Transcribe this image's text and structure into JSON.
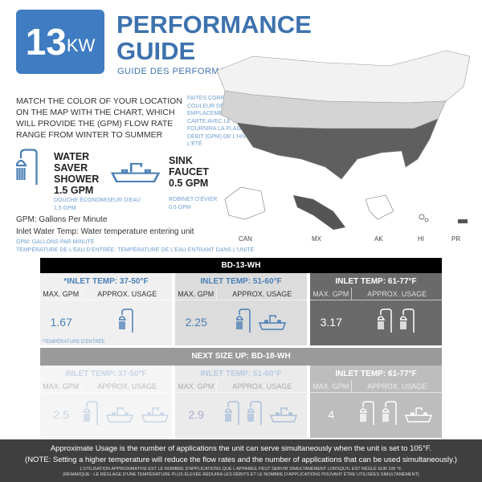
{
  "logo": {
    "number": "13",
    "unit": "KW"
  },
  "title": {
    "line1": "PERFORMANCE",
    "line2": "GUIDE",
    "subtitle": "GUIDE DES PERFORMANCES"
  },
  "intro": {
    "en": "MATCH THE COLOR OF YOUR LOCATION ON THE MAP WITH THE CHART, WHICH WILL PROVIDE THE  (GPM) FLOW RATE RANGE FROM WINTER TO SUMMER",
    "fr": "FAITES CORRESPONDRE LA COULEUR DE VOTRE EMPLACEMENT SUR LA CARTE AVEC LE TABLEAU, QUI FOURNIRA LA PLAGE DE DÉBIT (GPM) DE L'HIVER À L'ÉTÉ"
  },
  "shower": {
    "l1": "WATER",
    "l2": "SAVER",
    "l3": "SHOWER",
    "l4": "1.5 GPM",
    "fr1": "DOUCHE ÉCONOMISEUR D'EAU",
    "fr2": "1.5 GPM"
  },
  "sink": {
    "l1": "SINK",
    "l2": "FAUCET",
    "l3": "0.5 GPM",
    "fr1": "ROBINET D'ÉVIER",
    "fr2": "0.5 GPM"
  },
  "legend": {
    "gpm": "GPM: Gallons Per Minute",
    "inlet": "Inlet Water Temp: Water temperature entering unit",
    "fr1": "GPM: GALLONS PAR MINUTE",
    "fr2": "TEMPÉRATURE DE L'EAU D'ENTRÉE: TEMPÉRATURE DE L'EAU ENTRANT DANS L'UNITÉ"
  },
  "map_labels": [
    "CAN",
    "MX",
    "AK",
    "HI",
    "PR"
  ],
  "colors": {
    "blue": "#3f7cc1",
    "cold": "#f0f0f0",
    "mild": "#dcdcdc",
    "warm": "#6a6a6a"
  },
  "table1": {
    "title": "BD-13-WH",
    "note": "*TEMPÉRATURE D'ENTRÉE",
    "cols": [
      {
        "temp": "*INLET TEMP: 37-50°F",
        "h1": "MAX. GPM",
        "h2": "APPROX. USAGE",
        "gpm": "1.67",
        "icons": [
          "shower"
        ]
      },
      {
        "temp": "INLET TEMP: 51-60°F",
        "h1": "MAX. GPM",
        "h2": "APPROX. USAGE",
        "gpm": "2.25",
        "icons": [
          "shower",
          "sink"
        ]
      },
      {
        "temp": "INLET TEMP: 61-77°F",
        "h1": "MAX. GPM",
        "h2": "APPROX. USAGE",
        "gpm": "3.17",
        "icons": [
          "shower",
          "shower"
        ]
      }
    ]
  },
  "table2": {
    "title": "NEXT SIZE UP: BD-18-WH",
    "cols": [
      {
        "temp": "INLET TEMP: 37-50°F",
        "h1": "MAX. GPM",
        "h2": "APPROX. USAGE",
        "gpm": "2.5",
        "icons": [
          "shower",
          "sink",
          "sink"
        ]
      },
      {
        "temp": "INLET TEMP: 51-60°F",
        "h1": "MAX. GPM",
        "h2": "APPROX. USAGE",
        "gpm": "2.9",
        "icons": [
          "shower",
          "shower",
          "sink"
        ]
      },
      {
        "temp": "INLET TEMP: 61-77°F",
        "h1": "MAX. GPM",
        "h2": "APPROX. USAGE",
        "gpm": "4",
        "icons": [
          "shower",
          "shower",
          "sink"
        ]
      }
    ]
  },
  "footer": {
    "l1": "Approximate Usage is the number of applications the unit can serve simultaneously when the unit is set to 105°F.",
    "l2": "(NOTE:  Setting a higher temperature will reduce the flow rates and the number of applications that can be used simultaneously.)",
    "fr1": "L'UTILISATION APPROXIMATIVE EST LE NOMBRE D'APPLICATIONS QUE L'APPAREIL PEUT SERVIR SIMULTANÉMENT LORSQU'IL EST RÉGLÉ SUR 105 °F.",
    "fr2": "(REMARQUE : LE RÉGLAGE D'UNE TEMPÉRATURE PLUS ÉLEVÉE RÉDUIRA LES DÉBITS ET LE NOMBRE D'APPLICATIONS POUVANT ÊTRE UTILISÉES SIMULTANÉMENT)"
  }
}
